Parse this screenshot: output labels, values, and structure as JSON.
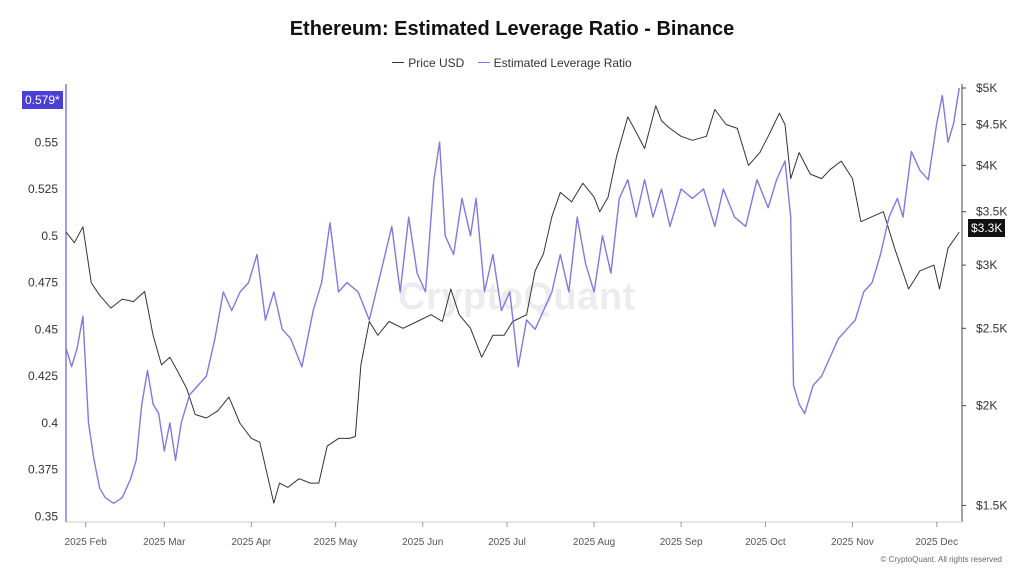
{
  "title": "Ethereum: Estimated Leverage Ratio - Binance",
  "legend": [
    {
      "label": "Price USD",
      "color": "#333333"
    },
    {
      "label": "Estimated Leverage Ratio",
      "color": "#8577e0"
    }
  ],
  "watermark": "CryptoQuant",
  "copyright": "© CryptoQuant. All rights reserved",
  "badges": {
    "left": {
      "text": "0.579*",
      "color": "#4a3fd6"
    },
    "right": {
      "text": "$3.3K",
      "color": "#111111"
    }
  },
  "chart_data": {
    "type": "line",
    "title": "Ethereum: Estimated Leverage Ratio - Binance",
    "x_ticks": [
      "2025 Feb",
      "2025 Mar",
      "2025 Apr",
      "2025 May",
      "2025 Jun",
      "2025 Jul",
      "2025 Aug",
      "2025 Sep",
      "2025 Oct",
      "2025 Nov",
      "2025 Dec"
    ],
    "x_range": [
      "2025-01-25",
      "2025-12-10"
    ],
    "left_axis": {
      "ticks": [
        0.35,
        0.375,
        0.4,
        0.425,
        0.45,
        0.475,
        0.5,
        0.525,
        0.55
      ],
      "range": [
        0.347,
        0.579
      ]
    },
    "right_axis": {
      "scale": "log",
      "ticks": [
        1500,
        2000,
        2500,
        3000,
        3500,
        4000,
        4500,
        5000
      ],
      "tick_labels": [
        "$1.5K",
        "$2K",
        "$2.5K",
        "$3K",
        "$3.5K",
        "$4K",
        "$4.5K",
        "$5K"
      ],
      "range": [
        1430,
        5000
      ]
    },
    "grid": false,
    "legend_position": "top-center",
    "series": [
      {
        "name": "Price USD",
        "axis": "right",
        "color": "#333333",
        "points": [
          [
            "2025-01-25",
            3300
          ],
          [
            "2025-01-28",
            3200
          ],
          [
            "2025-01-31",
            3350
          ],
          [
            "2025-02-03",
            2850
          ],
          [
            "2025-02-06",
            2750
          ],
          [
            "2025-02-10",
            2650
          ],
          [
            "2025-02-14",
            2720
          ],
          [
            "2025-02-18",
            2700
          ],
          [
            "2025-02-22",
            2780
          ],
          [
            "2025-02-25",
            2450
          ],
          [
            "2025-02-28",
            2250
          ],
          [
            "2025-03-03",
            2300
          ],
          [
            "2025-03-06",
            2200
          ],
          [
            "2025-03-09",
            2100
          ],
          [
            "2025-03-12",
            1950
          ],
          [
            "2025-03-16",
            1930
          ],
          [
            "2025-03-20",
            1970
          ],
          [
            "2025-03-24",
            2050
          ],
          [
            "2025-03-28",
            1900
          ],
          [
            "2025-04-01",
            1820
          ],
          [
            "2025-04-04",
            1800
          ],
          [
            "2025-04-07",
            1620
          ],
          [
            "2025-04-09",
            1510
          ],
          [
            "2025-04-11",
            1600
          ],
          [
            "2025-04-14",
            1580
          ],
          [
            "2025-04-18",
            1620
          ],
          [
            "2025-04-22",
            1600
          ],
          [
            "2025-04-25",
            1600
          ],
          [
            "2025-04-28",
            1780
          ],
          [
            "2025-05-02",
            1820
          ],
          [
            "2025-05-06",
            1820
          ],
          [
            "2025-05-08",
            1830
          ],
          [
            "2025-05-10",
            2250
          ],
          [
            "2025-05-13",
            2550
          ],
          [
            "2025-05-16",
            2450
          ],
          [
            "2025-05-20",
            2550
          ],
          [
            "2025-05-25",
            2500
          ],
          [
            "2025-05-30",
            2550
          ],
          [
            "2025-06-04",
            2600
          ],
          [
            "2025-06-08",
            2550
          ],
          [
            "2025-06-11",
            2800
          ],
          [
            "2025-06-14",
            2600
          ],
          [
            "2025-06-18",
            2500
          ],
          [
            "2025-06-22",
            2300
          ],
          [
            "2025-06-26",
            2450
          ],
          [
            "2025-06-30",
            2450
          ],
          [
            "2025-07-03",
            2550
          ],
          [
            "2025-07-08",
            2600
          ],
          [
            "2025-07-11",
            2950
          ],
          [
            "2025-07-14",
            3100
          ],
          [
            "2025-07-17",
            3450
          ],
          [
            "2025-07-20",
            3700
          ],
          [
            "2025-07-24",
            3600
          ],
          [
            "2025-07-28",
            3800
          ],
          [
            "2025-08-01",
            3650
          ],
          [
            "2025-08-03",
            3500
          ],
          [
            "2025-08-06",
            3650
          ],
          [
            "2025-08-09",
            4100
          ],
          [
            "2025-08-13",
            4600
          ],
          [
            "2025-08-16",
            4400
          ],
          [
            "2025-08-19",
            4200
          ],
          [
            "2025-08-23",
            4750
          ],
          [
            "2025-08-25",
            4550
          ],
          [
            "2025-08-28",
            4450
          ],
          [
            "2025-09-01",
            4350
          ],
          [
            "2025-09-05",
            4300
          ],
          [
            "2025-09-10",
            4350
          ],
          [
            "2025-09-13",
            4700
          ],
          [
            "2025-09-17",
            4500
          ],
          [
            "2025-09-21",
            4450
          ],
          [
            "2025-09-25",
            4000
          ],
          [
            "2025-09-29",
            4150
          ],
          [
            "2025-10-02",
            4350
          ],
          [
            "2025-10-06",
            4650
          ],
          [
            "2025-10-08",
            4500
          ],
          [
            "2025-10-10",
            3850
          ],
          [
            "2025-10-13",
            4150
          ],
          [
            "2025-10-17",
            3900
          ],
          [
            "2025-10-21",
            3850
          ],
          [
            "2025-10-24",
            3950
          ],
          [
            "2025-10-28",
            4050
          ],
          [
            "2025-11-01",
            3850
          ],
          [
            "2025-11-04",
            3400
          ],
          [
            "2025-11-08",
            3450
          ],
          [
            "2025-11-12",
            3500
          ],
          [
            "2025-11-16",
            3150
          ],
          [
            "2025-11-21",
            2800
          ],
          [
            "2025-11-25",
            2950
          ],
          [
            "2025-11-30",
            3000
          ],
          [
            "2025-12-02",
            2800
          ],
          [
            "2025-12-05",
            3150
          ],
          [
            "2025-12-09",
            3300
          ]
        ]
      },
      {
        "name": "Estimated Leverage Ratio",
        "axis": "left",
        "color": "#8577e0",
        "points": [
          [
            "2025-01-25",
            0.44
          ],
          [
            "2025-01-27",
            0.43
          ],
          [
            "2025-01-29",
            0.44
          ],
          [
            "2025-01-31",
            0.457
          ],
          [
            "2025-02-02",
            0.4
          ],
          [
            "2025-02-04",
            0.38
          ],
          [
            "2025-02-06",
            0.365
          ],
          [
            "2025-02-08",
            0.36
          ],
          [
            "2025-02-11",
            0.357
          ],
          [
            "2025-02-14",
            0.36
          ],
          [
            "2025-02-17",
            0.37
          ],
          [
            "2025-02-19",
            0.38
          ],
          [
            "2025-02-21",
            0.41
          ],
          [
            "2025-02-23",
            0.428
          ],
          [
            "2025-02-25",
            0.41
          ],
          [
            "2025-02-27",
            0.405
          ],
          [
            "2025-03-01",
            0.385
          ],
          [
            "2025-03-03",
            0.4
          ],
          [
            "2025-03-05",
            0.38
          ],
          [
            "2025-03-07",
            0.4
          ],
          [
            "2025-03-10",
            0.415
          ],
          [
            "2025-03-13",
            0.42
          ],
          [
            "2025-03-16",
            0.425
          ],
          [
            "2025-03-19",
            0.445
          ],
          [
            "2025-03-22",
            0.47
          ],
          [
            "2025-03-25",
            0.46
          ],
          [
            "2025-03-28",
            0.47
          ],
          [
            "2025-03-31",
            0.475
          ],
          [
            "2025-04-03",
            0.49
          ],
          [
            "2025-04-06",
            0.455
          ],
          [
            "2025-04-09",
            0.47
          ],
          [
            "2025-04-12",
            0.45
          ],
          [
            "2025-04-15",
            0.445
          ],
          [
            "2025-04-19",
            0.43
          ],
          [
            "2025-04-23",
            0.46
          ],
          [
            "2025-04-26",
            0.475
          ],
          [
            "2025-04-29",
            0.507
          ],
          [
            "2025-05-02",
            0.47
          ],
          [
            "2025-05-05",
            0.475
          ],
          [
            "2025-05-09",
            0.47
          ],
          [
            "2025-05-13",
            0.455
          ],
          [
            "2025-05-17",
            0.48
          ],
          [
            "2025-05-21",
            0.505
          ],
          [
            "2025-05-24",
            0.47
          ],
          [
            "2025-05-27",
            0.51
          ],
          [
            "2025-05-30",
            0.48
          ],
          [
            "2025-06-02",
            0.47
          ],
          [
            "2025-06-05",
            0.53
          ],
          [
            "2025-06-07",
            0.55
          ],
          [
            "2025-06-09",
            0.5
          ],
          [
            "2025-06-12",
            0.49
          ],
          [
            "2025-06-15",
            0.52
          ],
          [
            "2025-06-18",
            0.5
          ],
          [
            "2025-06-20",
            0.52
          ],
          [
            "2025-06-23",
            0.47
          ],
          [
            "2025-06-26",
            0.49
          ],
          [
            "2025-06-29",
            0.46
          ],
          [
            "2025-07-02",
            0.47
          ],
          [
            "2025-07-05",
            0.43
          ],
          [
            "2025-07-08",
            0.455
          ],
          [
            "2025-07-11",
            0.45
          ],
          [
            "2025-07-14",
            0.46
          ],
          [
            "2025-07-17",
            0.47
          ],
          [
            "2025-07-20",
            0.49
          ],
          [
            "2025-07-23",
            0.47
          ],
          [
            "2025-07-26",
            0.51
          ],
          [
            "2025-07-29",
            0.485
          ],
          [
            "2025-08-01",
            0.47
          ],
          [
            "2025-08-04",
            0.5
          ],
          [
            "2025-08-07",
            0.48
          ],
          [
            "2025-08-10",
            0.52
          ],
          [
            "2025-08-13",
            0.53
          ],
          [
            "2025-08-16",
            0.51
          ],
          [
            "2025-08-19",
            0.53
          ],
          [
            "2025-08-22",
            0.51
          ],
          [
            "2025-08-25",
            0.525
          ],
          [
            "2025-08-28",
            0.505
          ],
          [
            "2025-09-01",
            0.525
          ],
          [
            "2025-09-05",
            0.52
          ],
          [
            "2025-09-09",
            0.525
          ],
          [
            "2025-09-13",
            0.505
          ],
          [
            "2025-09-16",
            0.525
          ],
          [
            "2025-09-20",
            0.51
          ],
          [
            "2025-09-24",
            0.505
          ],
          [
            "2025-09-28",
            0.53
          ],
          [
            "2025-10-02",
            0.515
          ],
          [
            "2025-10-05",
            0.53
          ],
          [
            "2025-10-08",
            0.54
          ],
          [
            "2025-10-10",
            0.51
          ],
          [
            "2025-10-11",
            0.42
          ],
          [
            "2025-10-13",
            0.41
          ],
          [
            "2025-10-15",
            0.405
          ],
          [
            "2025-10-18",
            0.42
          ],
          [
            "2025-10-21",
            0.425
          ],
          [
            "2025-10-24",
            0.435
          ],
          [
            "2025-10-27",
            0.445
          ],
          [
            "2025-10-30",
            0.45
          ],
          [
            "2025-11-02",
            0.455
          ],
          [
            "2025-11-05",
            0.47
          ],
          [
            "2025-11-08",
            0.475
          ],
          [
            "2025-11-11",
            0.49
          ],
          [
            "2025-11-14",
            0.51
          ],
          [
            "2025-11-17",
            0.52
          ],
          [
            "2025-11-19",
            0.51
          ],
          [
            "2025-11-22",
            0.545
          ],
          [
            "2025-11-25",
            0.535
          ],
          [
            "2025-11-28",
            0.53
          ],
          [
            "2025-12-01",
            0.56
          ],
          [
            "2025-12-03",
            0.575
          ],
          [
            "2025-12-05",
            0.55
          ],
          [
            "2025-12-07",
            0.56
          ],
          [
            "2025-12-09",
            0.579
          ]
        ]
      }
    ]
  }
}
